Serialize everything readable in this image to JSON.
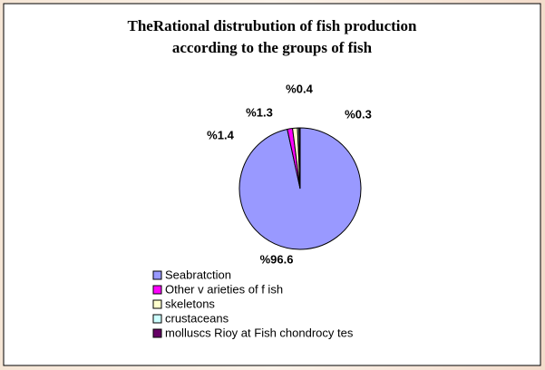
{
  "chart_data": {
    "type": "pie",
    "title": [
      "TheRational distrubution of fish production",
      "according to the groups of fish"
    ],
    "categories": [
      "Seabratction",
      "Other v arieties of f ish",
      "skeletons",
      "crustaceans",
      "molluscs Rioy at Fish chondrocy tes"
    ],
    "values": [
      96.6,
      1.4,
      1.3,
      0.4,
      0.3
    ],
    "value_labels": [
      "%96.6",
      "%1.4",
      "%1.3",
      "%0.4",
      "%0.3"
    ],
    "colors": [
      "#9999ff",
      "#ff00ff",
      "#ffffcc",
      "#ccffff",
      "#660066"
    ],
    "legend": "bottom"
  }
}
